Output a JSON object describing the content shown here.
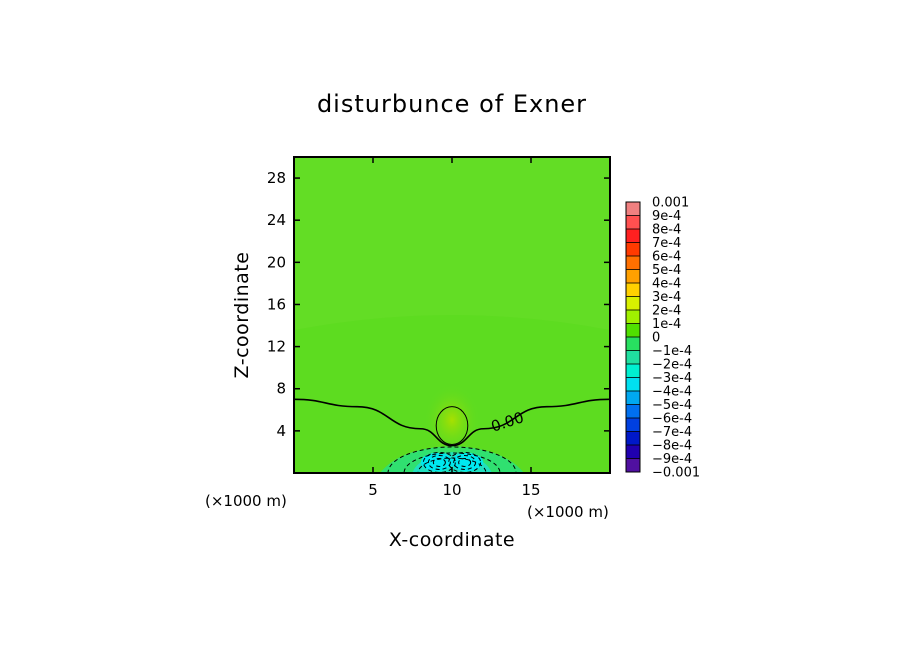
{
  "chart_data": {
    "type": "contour",
    "title": "disturbunce of Exner",
    "xlabel": "X-coordinate",
    "ylabel": "Z-coordinate",
    "xlim": [
      0,
      20
    ],
    "ylim": [
      0,
      30
    ],
    "x_ticks": [
      5,
      10,
      15
    ],
    "y_ticks": [
      4,
      8,
      12,
      16,
      20,
      24,
      28
    ],
    "x_unit": "(×1000 m)",
    "y_unit": "(×1000 m)",
    "contour_label": "0.00",
    "features": [
      {
        "kind": "zero-contour",
        "x": [
          0,
          4,
          8,
          10,
          12,
          16,
          20
        ],
        "z": [
          7.0,
          6.3,
          4.2,
          2.6,
          4.2,
          6.3,
          7.0
        ]
      },
      {
        "kind": "positive-max",
        "x": 10,
        "z": 4.5,
        "rx": 1.0,
        "rz": 1.8
      },
      {
        "kind": "negative-min",
        "x": 9.2,
        "z": 1.0
      },
      {
        "kind": "negative-min",
        "x": 10.8,
        "z": 1.0
      }
    ],
    "colorbar": {
      "labels": [
        "0.001",
        "9e-4",
        "8e-4",
        "7e-4",
        "6e-4",
        "5e-4",
        "4e-4",
        "3e-4",
        "2e-4",
        "1e-4",
        "0",
        "−1e-4",
        "−2e-4",
        "−3e-4",
        "−4e-4",
        "−5e-4",
        "−6e-4",
        "−7e-4",
        "−8e-4",
        "−9e-4",
        "−0.001"
      ],
      "colors": [
        "#f08080",
        "#ff5050",
        "#ff2020",
        "#ff3a00",
        "#ff7000",
        "#ffa000",
        "#ffd000",
        "#d8f000",
        "#a0f000",
        "#50e000",
        "#28e060",
        "#20e0a0",
        "#00f0d0",
        "#00e0f0",
        "#00a8f0",
        "#0070f0",
        "#0040e0",
        "#0018c8",
        "#2000b0",
        "#5010a0"
      ]
    }
  }
}
